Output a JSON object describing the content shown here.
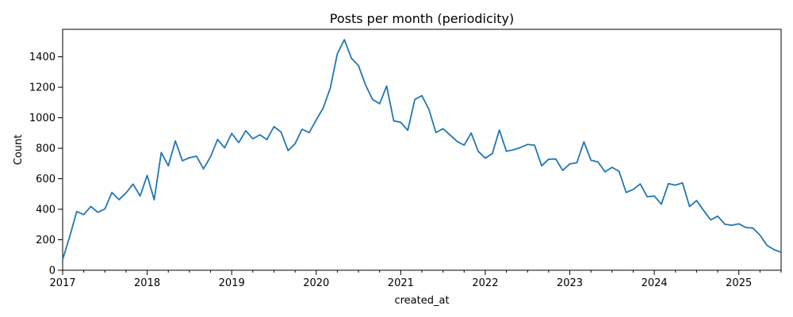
{
  "chart_data": {
    "type": "line",
    "title": "Posts per month (periodicity)",
    "xlabel": "created_at",
    "ylabel": "Count",
    "x_ticks": [
      "2017",
      "2018",
      "2019",
      "2020",
      "2021",
      "2022",
      "2023",
      "2024",
      "2025"
    ],
    "y_ticks": [
      "0",
      "200",
      "400",
      "600",
      "800",
      "1000",
      "1200",
      "1400"
    ],
    "xlim": [
      "2017-01",
      "2025-07"
    ],
    "ylim": [
      0,
      1580
    ],
    "grid": false,
    "series_color": "#1f77b4",
    "series": [
      {
        "x": [
          "2017-01",
          "2017-02",
          "2017-03",
          "2017-04",
          "2017-05",
          "2017-06",
          "2017-07",
          "2017-08",
          "2017-09",
          "2017-10",
          "2017-11",
          "2017-12",
          "2018-01",
          "2018-02",
          "2018-03",
          "2018-04",
          "2018-05",
          "2018-06",
          "2018-07",
          "2018-08",
          "2018-09",
          "2018-10",
          "2018-11",
          "2018-12",
          "2019-01",
          "2019-02",
          "2019-03",
          "2019-04",
          "2019-05",
          "2019-06",
          "2019-07",
          "2019-08",
          "2019-09",
          "2019-10",
          "2019-11",
          "2019-12",
          "2020-01",
          "2020-02",
          "2020-03",
          "2020-04",
          "2020-05",
          "2020-06",
          "2020-07",
          "2020-08",
          "2020-09",
          "2020-10",
          "2020-11",
          "2020-12",
          "2021-01",
          "2021-02",
          "2021-03",
          "2021-04",
          "2021-05",
          "2021-06",
          "2021-07",
          "2021-08",
          "2021-09",
          "2021-10",
          "2021-11",
          "2021-12",
          "2022-01",
          "2022-02",
          "2022-03",
          "2022-04",
          "2022-05",
          "2022-06",
          "2022-07",
          "2022-08",
          "2022-09",
          "2022-10",
          "2022-11",
          "2022-12",
          "2023-01",
          "2023-02",
          "2023-03",
          "2023-04",
          "2023-05",
          "2023-06",
          "2023-07",
          "2023-08",
          "2023-09",
          "2023-10",
          "2023-11",
          "2023-12",
          "2024-01",
          "2024-02",
          "2024-03",
          "2024-04",
          "2024-05",
          "2024-06",
          "2024-07",
          "2024-08",
          "2024-09",
          "2024-10",
          "2024-11",
          "2024-12",
          "2025-01",
          "2025-02",
          "2025-03",
          "2025-04",
          "2025-05",
          "2025-06",
          "2025-07"
        ],
        "values": [
          70,
          220,
          385,
          365,
          418,
          380,
          402,
          510,
          463,
          507,
          565,
          487,
          622,
          462,
          772,
          685,
          848,
          718,
          738,
          748,
          665,
          745,
          858,
          803,
          897,
          837,
          915,
          862,
          888,
          857,
          942,
          907,
          785,
          830,
          925,
          903,
          985,
          1065,
          1195,
          1420,
          1512,
          1390,
          1342,
          1215,
          1120,
          1092,
          1208,
          980,
          970,
          918,
          1120,
          1145,
          1055,
          903,
          928,
          887,
          845,
          820,
          900,
          780,
          735,
          765,
          920,
          780,
          790,
          805,
          825,
          820,
          685,
          728,
          730,
          655,
          697,
          705,
          842,
          722,
          710,
          645,
          675,
          648,
          510,
          530,
          566,
          482,
          487,
          433,
          568,
          558,
          573,
          418,
          457,
          392,
          330,
          355,
          302,
          295,
          305,
          280,
          277,
          230,
          163,
          135,
          118
        ]
      }
    ]
  }
}
